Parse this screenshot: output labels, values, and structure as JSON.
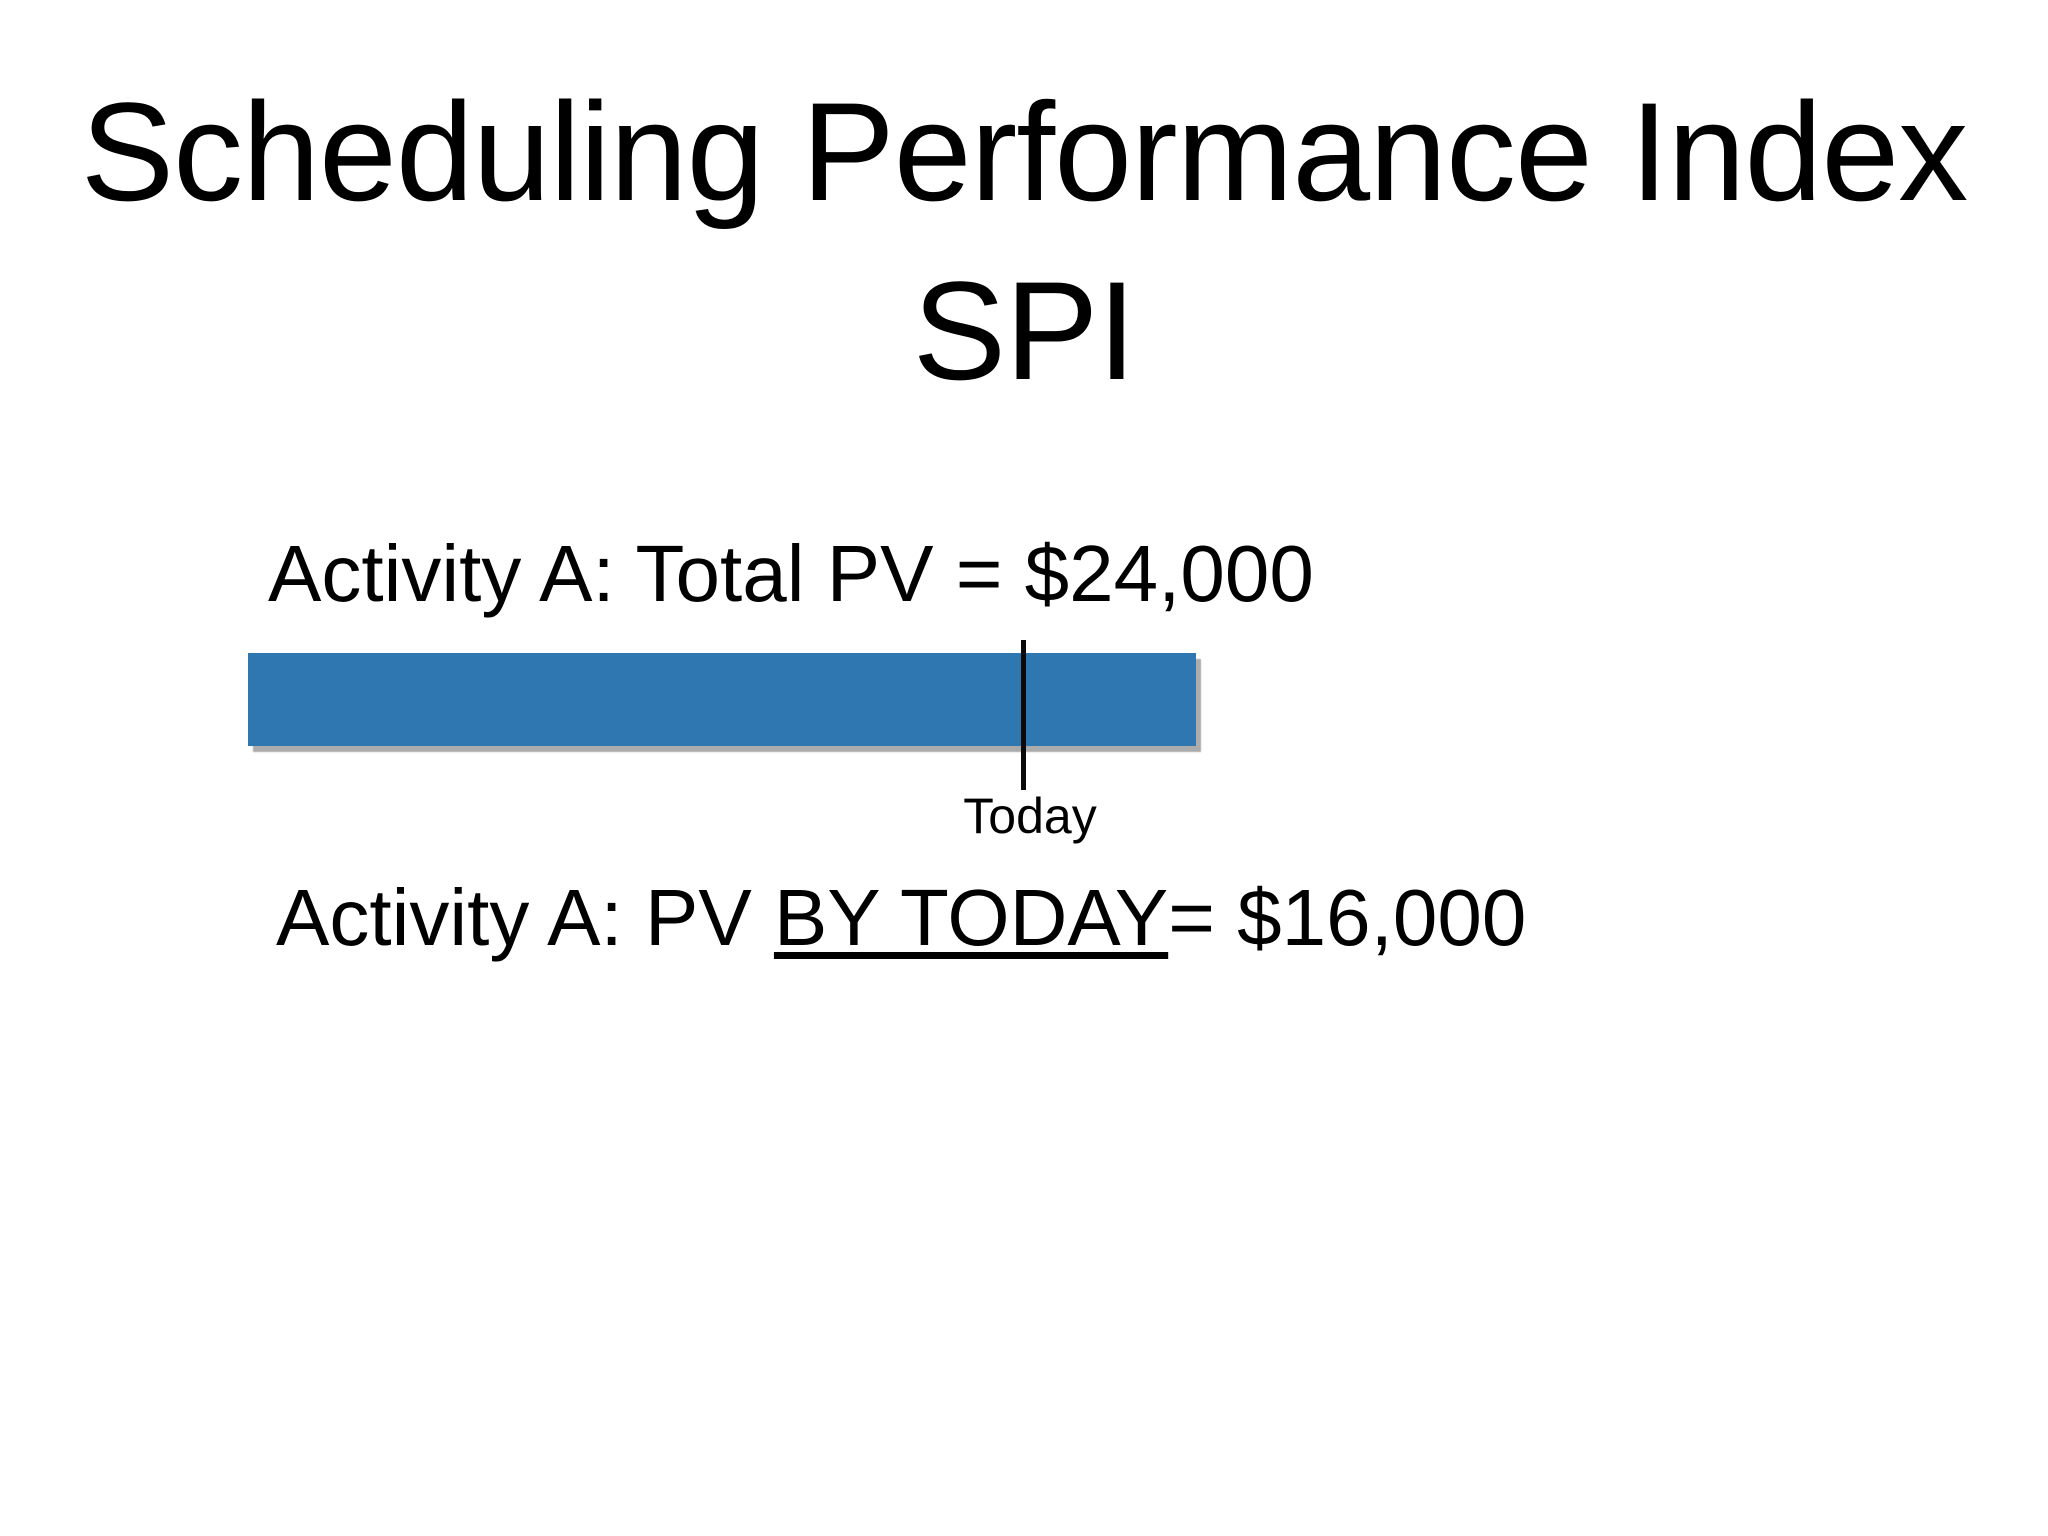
{
  "slide": {
    "title": {
      "line1": "Scheduling Performance Index",
      "line2": "SPI"
    },
    "activity_total_label": "Activity A: Total PV = $24,000",
    "activity_by_today": {
      "prefix": "Activity A: PV ",
      "underlined": "BY TODAY",
      "suffix": "= $16,000"
    },
    "today_label": "Today",
    "diagram": {
      "type": "schedule-bar",
      "total_pv_dollars": 24000,
      "pv_by_today_dollars": 16000,
      "bar_fill_color": "#2f77b0",
      "bar_shadow_color": "#ababab",
      "marker_color": "#0a0a0a",
      "text_color": "#000000",
      "background_color": "#ffffff"
    }
  }
}
